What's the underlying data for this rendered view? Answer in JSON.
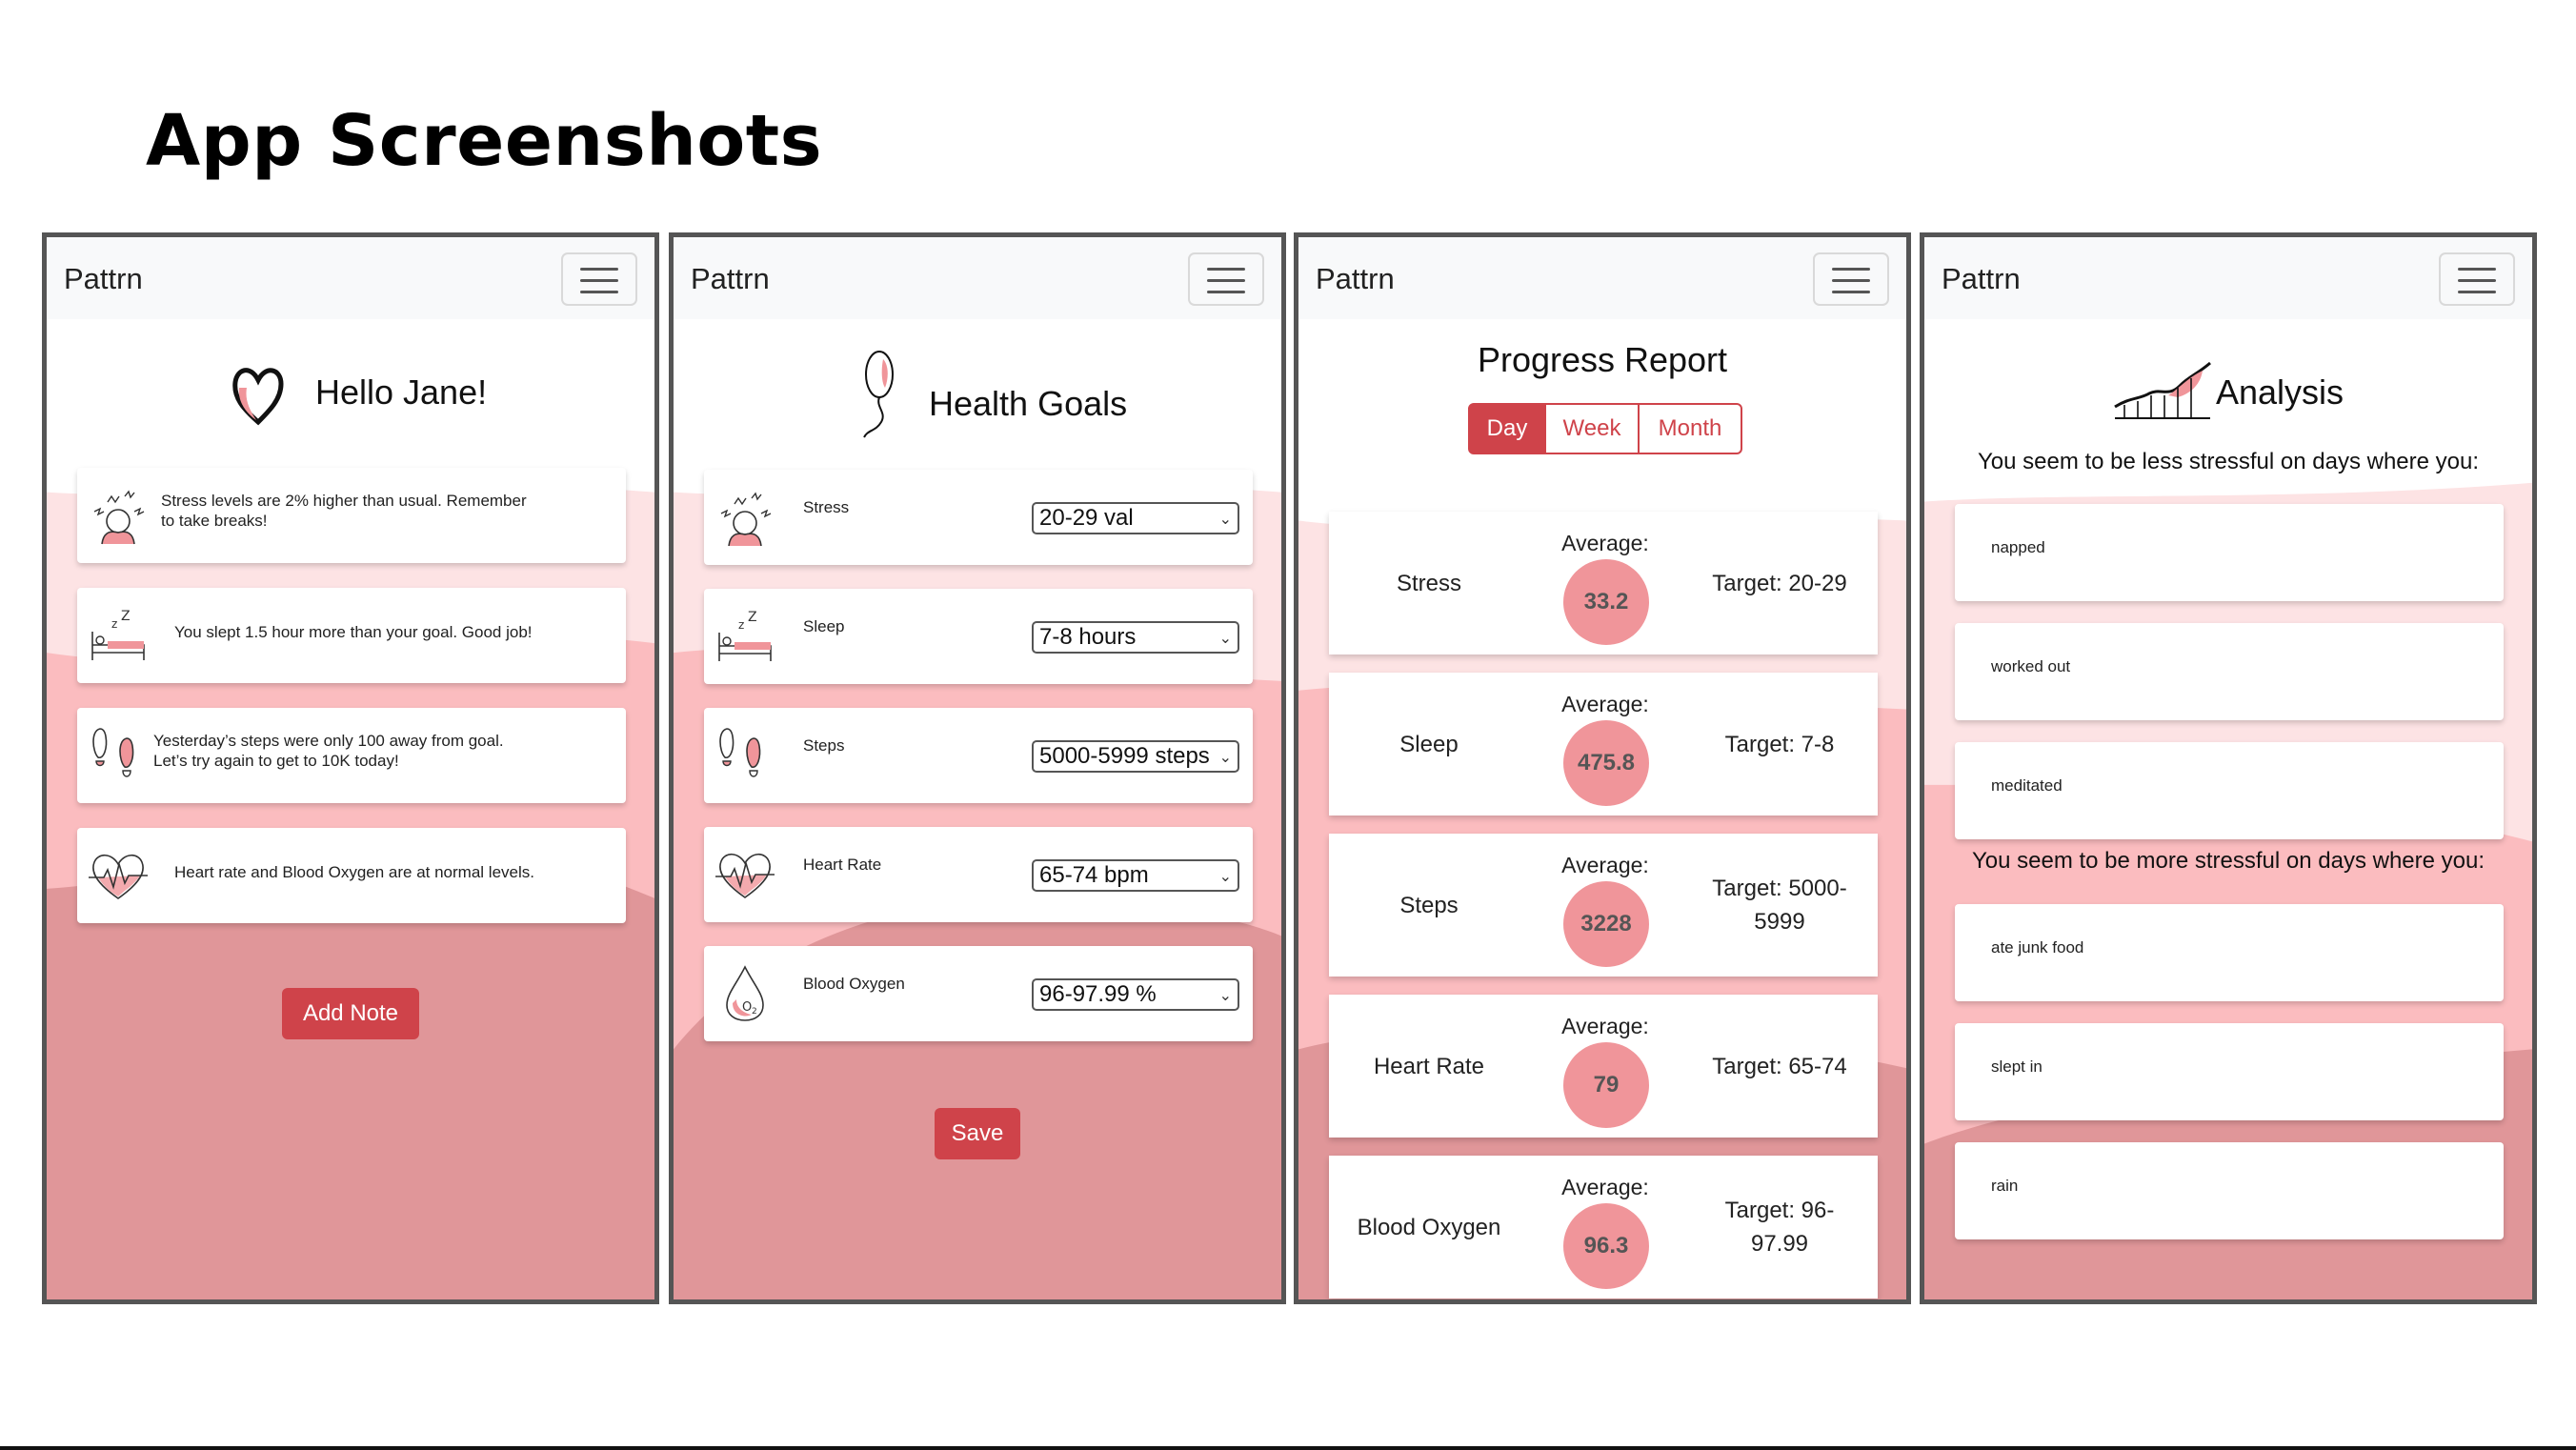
{
  "page": {
    "title": "App Screenshots"
  },
  "colors": {
    "accent": "#cf434a",
    "wave_light": "#fde3e4",
    "wave_mid": "#fbbcbf",
    "wave_dark": "#e09699",
    "circle": "#f0959a"
  },
  "screens": {
    "home": {
      "brand": "Pattrn",
      "heading": "Hello Jane!",
      "heading_icon": "heart-icon",
      "notes": [
        {
          "icon": "stress-icon",
          "line1": "Stress levels are 2% higher than usual. Remember",
          "line2": "to take breaks!"
        },
        {
          "icon": "sleep-bed-icon",
          "line1": "You slept 1.5 hour more than your goal. Good job!",
          "line2": ""
        },
        {
          "icon": "footprints-icon",
          "line1": "Yesterday’s steps were only 100 away from goal.",
          "line2": "Let’s try again to get to 10K today!"
        },
        {
          "icon": "heartbeat-icon",
          "line1": "Heart rate and Blood Oxygen are at normal levels.",
          "line2": ""
        }
      ],
      "button": "Add Note"
    },
    "goals": {
      "brand": "Pattrn",
      "heading": "Health Goals",
      "heading_icon": "balloon-icon",
      "items": [
        {
          "icon": "stress-icon",
          "label": "Stress",
          "value": "20-29 val"
        },
        {
          "icon": "sleep-bed-icon",
          "label": "Sleep",
          "value": "7-8 hours"
        },
        {
          "icon": "footprints-icon",
          "label": "Steps",
          "value": "5000-5999 steps"
        },
        {
          "icon": "heartbeat-icon",
          "label": "Heart Rate",
          "value": "65-74 bpm"
        },
        {
          "icon": "drop-icon",
          "label": "Blood Oxygen",
          "value": "96-97.99 %"
        }
      ],
      "button": "Save"
    },
    "progress": {
      "brand": "Pattrn",
      "heading": "Progress Report",
      "tabs": [
        "Day",
        "Week",
        "Month"
      ],
      "active_tab": "Day",
      "avg_label": "Average:",
      "metrics": [
        {
          "name": "Stress",
          "average": "33.2",
          "target_line1": "Target: 20-29",
          "target_line2": ""
        },
        {
          "name": "Sleep",
          "average": "475.8",
          "target_line1": "Target: 7-8",
          "target_line2": ""
        },
        {
          "name": "Steps",
          "average": "3228",
          "target_line1": "Target: 5000-",
          "target_line2": "5999"
        },
        {
          "name": "Heart Rate",
          "average": "79",
          "target_line1": "Target: 65-74",
          "target_line2": ""
        },
        {
          "name": "Blood Oxygen",
          "average": "96.3",
          "target_line1": "Target: 96-",
          "target_line2": "97.99"
        }
      ]
    },
    "analysis": {
      "brand": "Pattrn",
      "heading": "Analysis",
      "heading_icon": "chart-icon",
      "less_title": "You seem to be less stressful on days where you:",
      "less": [
        "napped",
        "worked out",
        "meditated"
      ],
      "more_title": "You seem to be more stressful on days where you:",
      "more": [
        "ate junk food",
        "slept in",
        "rain"
      ]
    }
  }
}
